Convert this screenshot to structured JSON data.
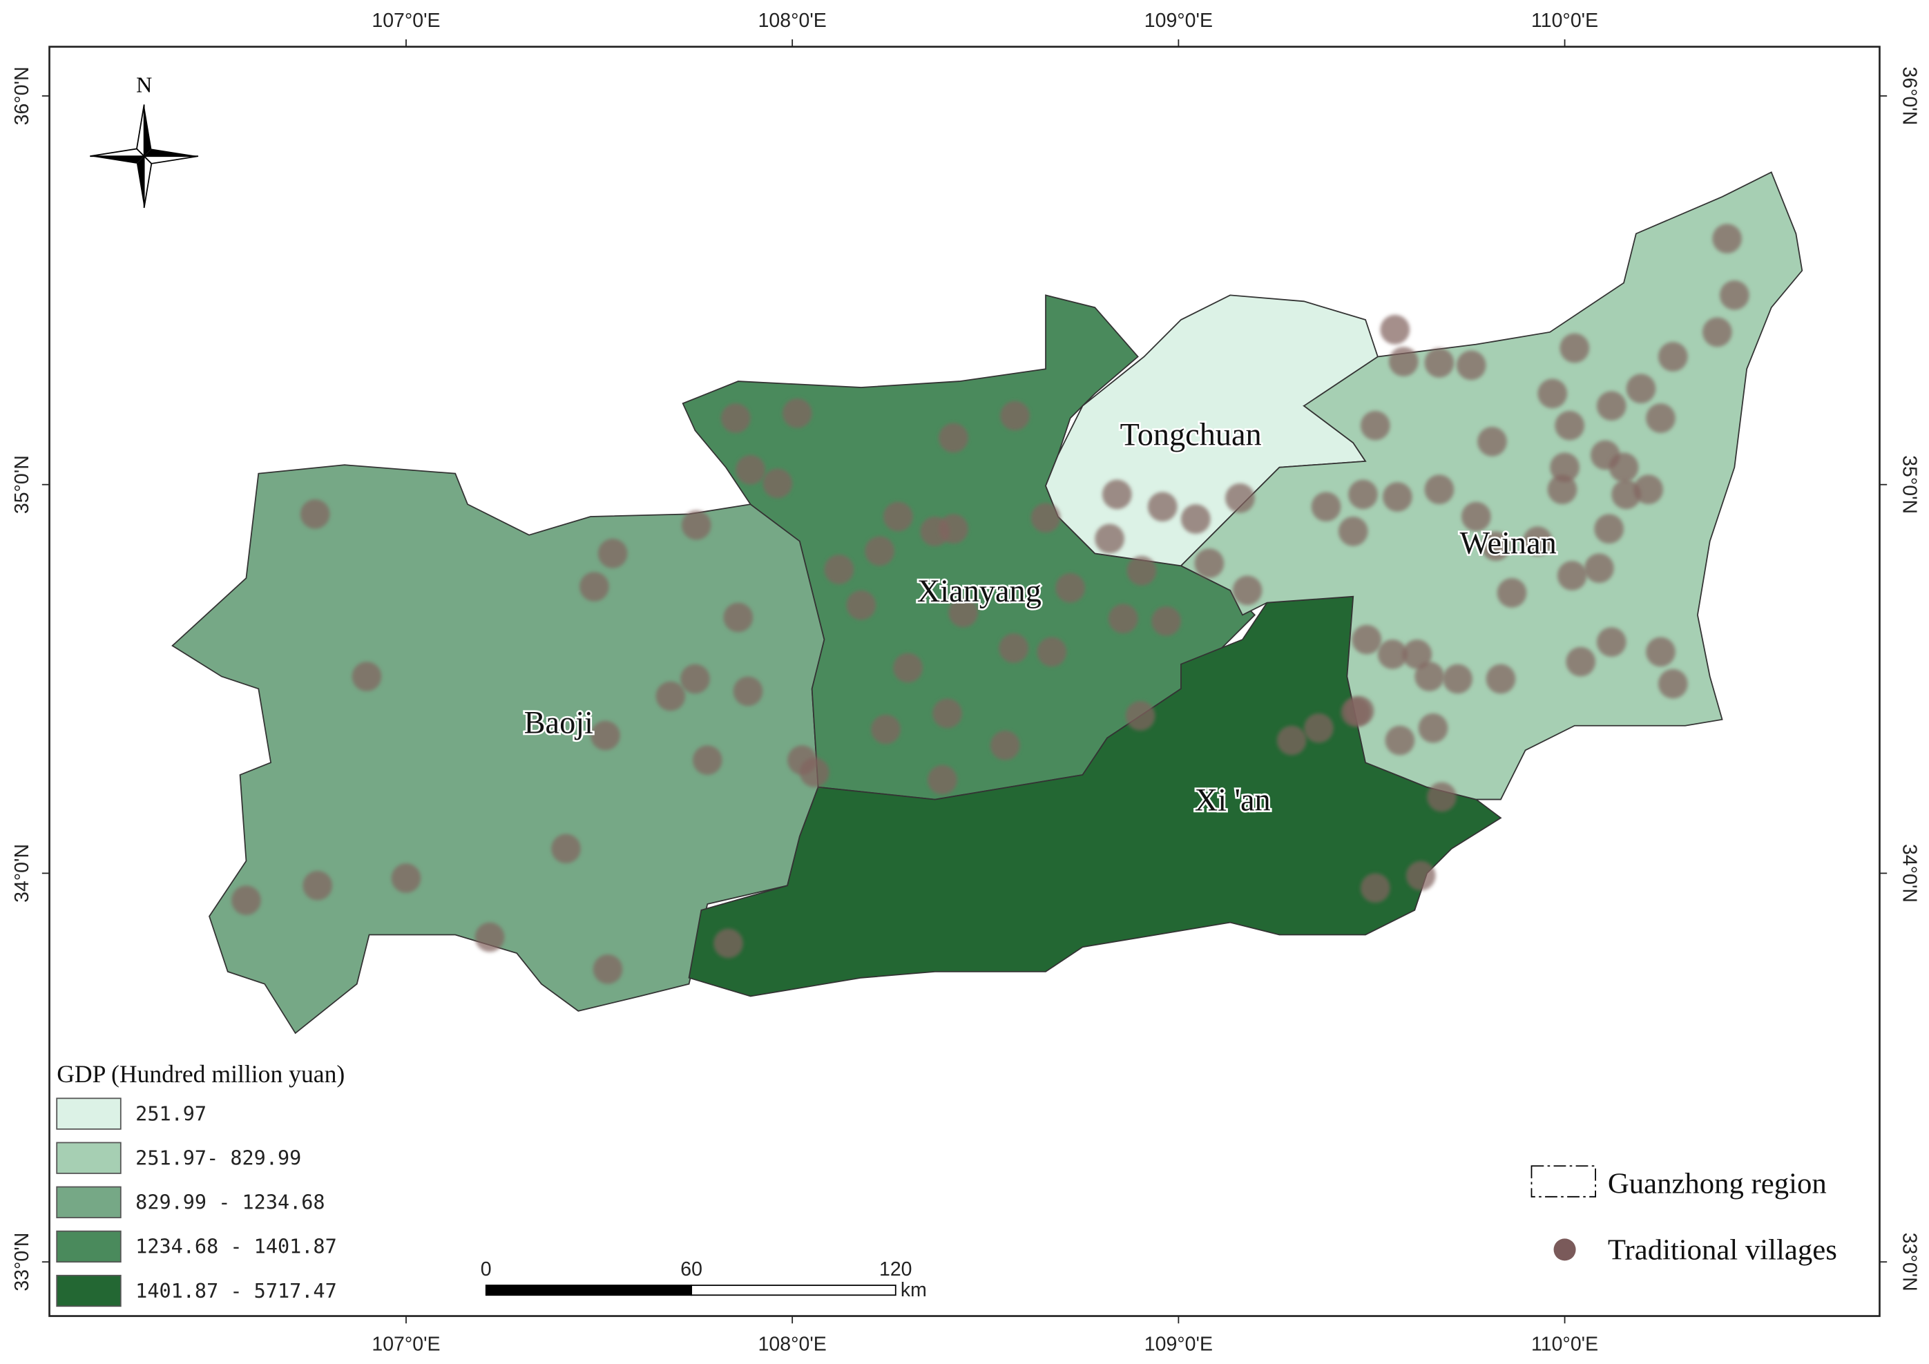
{
  "map": {
    "longitude_labels": [
      "107°0'E",
      "108°0'E",
      "109°0'E",
      "110°0'E"
    ],
    "latitude_labels": [
      "36°0'N",
      "35°0'N",
      "34°0'N",
      "33°0'N"
    ],
    "north_label": "N",
    "regions": [
      "Tongchuan",
      "Xianyang",
      "Weinan",
      "Baoji",
      "Xi 'an"
    ],
    "gdp_legend": {
      "title": "GDP (Hundred million yuan)",
      "classes": [
        {
          "label": "251.97",
          "color": "#dcf2e6"
        },
        {
          "label": "251.97- 829.99",
          "color": "#a6cfb3"
        },
        {
          "label": "829.99 - 1234.68",
          "color": "#76a886"
        },
        {
          "label": "1234.68 - 1401.87",
          "color": "#4a8a5c"
        },
        {
          "label": "1401.87 - 5717.47",
          "color": "#236733"
        }
      ]
    },
    "scale_bar": {
      "labels": [
        "0",
        "60",
        "120"
      ],
      "unit": "km"
    },
    "legend": [
      "Guanzhong region",
      "Traditional villages"
    ]
  }
}
